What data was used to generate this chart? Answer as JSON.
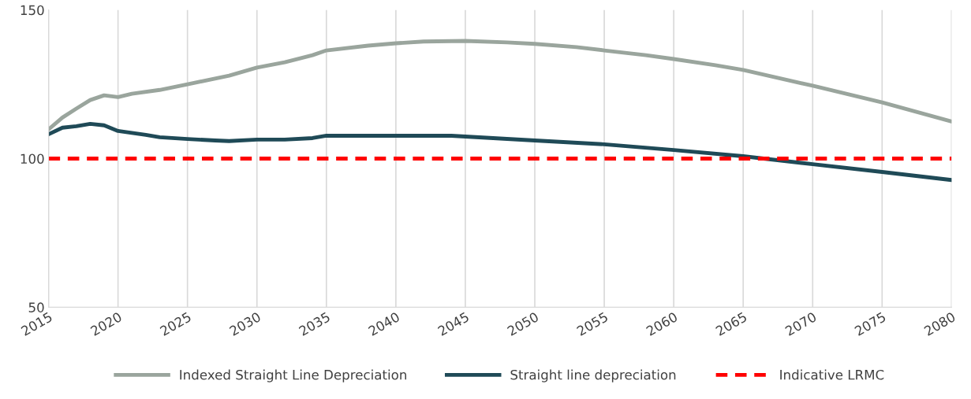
{
  "chart_data": {
    "type": "line",
    "xlim": [
      2015,
      2080
    ],
    "xticks": [
      2015,
      2020,
      2025,
      2030,
      2035,
      2040,
      2045,
      2050,
      2055,
      2060,
      2065,
      2070,
      2075,
      2080
    ],
    "ylim": [
      50,
      150
    ],
    "yticks": [
      50,
      100,
      150
    ],
    "grid": "x",
    "legend": "bottom",
    "series": [
      {
        "name": "Indexed Straight Line Depreciation",
        "color": "#9aa59d",
        "line_style": "solid",
        "x": [
          2015,
          2016,
          2017,
          2018,
          2019,
          2020,
          2021,
          2023,
          2025,
          2028,
          2030,
          2032,
          2034,
          2035,
          2038,
          2040,
          2042,
          2045,
          2048,
          2050,
          2053,
          2055,
          2058,
          2060,
          2063,
          2065,
          2070,
          2075,
          2080
        ],
        "values": [
          109.8,
          113.8,
          116.8,
          119.7,
          121.3,
          120.7,
          121.8,
          123.1,
          125,
          127.9,
          130.6,
          132.4,
          134.8,
          136.4,
          138,
          138.8,
          139.4,
          139.6,
          139.1,
          138.6,
          137.5,
          136.4,
          134.8,
          133.5,
          131.4,
          129.8,
          124.5,
          118.9,
          112.5
        ]
      },
      {
        "name": "Straight line depreciation",
        "color": "#1f4a57",
        "line_style": "solid",
        "x": [
          2015,
          2016,
          2017,
          2018,
          2019,
          2020,
          2022,
          2023,
          2025,
          2027,
          2028,
          2030,
          2032,
          2034,
          2035,
          2040,
          2044,
          2050,
          2055,
          2060,
          2065,
          2070,
          2075,
          2080
        ],
        "values": [
          108.2,
          110.4,
          110.9,
          111.7,
          111.2,
          109.3,
          108,
          107.2,
          106.6,
          106.1,
          105.9,
          106.4,
          106.4,
          106.9,
          107.7,
          107.7,
          107.7,
          106.1,
          104.8,
          102.9,
          100.8,
          98.1,
          95.5,
          92.8
        ]
      },
      {
        "name": "Indicative LRMC",
        "color": "#ff0000",
        "line_style": "dashed",
        "x": [
          2015,
          2080
        ],
        "values": [
          100,
          100
        ]
      }
    ]
  }
}
